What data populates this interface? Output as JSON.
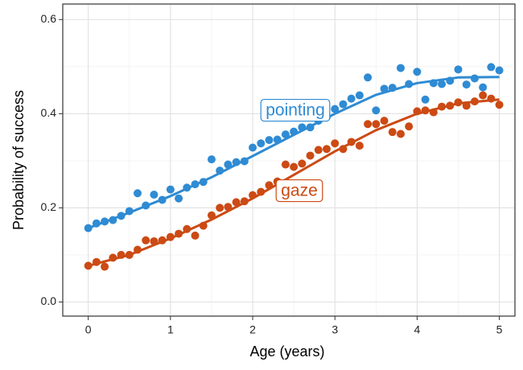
{
  "chart_data": {
    "type": "scatter",
    "xlabel": "Age (years)",
    "ylabel": "Probability of success",
    "xlim": [
      -0.31,
      5.19
    ],
    "ylim": [
      -0.03,
      0.633
    ],
    "xticks": [
      0,
      1,
      2,
      3,
      4,
      5
    ],
    "yticks": [
      {
        "value": 0,
        "label": "0.0"
      },
      {
        "value": 0.2,
        "label": "0.2"
      },
      {
        "value": 0.4,
        "label": "0.4"
      },
      {
        "value": 0.6,
        "label": "0.6"
      }
    ],
    "grid": true,
    "x": [
      0,
      0.1,
      0.2,
      0.3,
      0.4,
      0.5,
      0.6,
      0.7,
      0.8,
      0.9,
      1,
      1.1,
      1.2,
      1.3,
      1.4,
      1.5,
      1.6,
      1.7,
      1.8,
      1.9,
      2,
      2.1,
      2.2,
      2.3,
      2.4,
      2.5,
      2.6,
      2.7,
      2.8,
      2.9,
      3,
      3.1,
      3.2,
      3.3,
      3.4,
      3.5,
      3.6,
      3.7,
      3.8,
      3.9,
      4,
      4.1,
      4.2,
      4.3,
      4.4,
      4.5,
      4.6,
      4.7,
      4.8,
      4.9,
      5
    ],
    "fit_x": [
      0,
      0.5,
      1,
      1.5,
      2,
      2.5,
      3,
      3.5,
      4,
      4.5,
      5
    ],
    "series": [
      {
        "name": "pointing",
        "color": "#2f8bd3",
        "values": [
          0.157,
          0.167,
          0.171,
          0.174,
          0.183,
          0.193,
          0.231,
          0.205,
          0.228,
          0.217,
          0.239,
          0.22,
          0.243,
          0.25,
          0.255,
          0.303,
          0.279,
          0.292,
          0.297,
          0.299,
          0.328,
          0.337,
          0.344,
          0.345,
          0.356,
          0.362,
          0.371,
          0.371,
          0.385,
          0.393,
          0.41,
          0.42,
          0.432,
          0.439,
          0.477,
          0.407,
          0.453,
          0.455,
          0.497,
          0.463,
          0.489,
          0.43,
          0.465,
          0.463,
          0.47,
          0.494,
          0.462,
          0.475,
          0.456,
          0.499,
          0.492
        ],
        "fit_values": [
          0.157,
          0.19,
          0.225,
          0.265,
          0.31,
          0.355,
          0.4,
          0.44,
          0.465,
          0.477,
          0.478
        ]
      },
      {
        "name": "gaze",
        "color": "#cc4a14",
        "values": [
          0.077,
          0.085,
          0.075,
          0.094,
          0.1,
          0.1,
          0.111,
          0.131,
          0.129,
          0.131,
          0.138,
          0.145,
          0.155,
          0.141,
          0.162,
          0.184,
          0.2,
          0.202,
          0.212,
          0.214,
          0.227,
          0.234,
          0.248,
          0.256,
          0.292,
          0.287,
          0.294,
          0.311,
          0.323,
          0.325,
          0.337,
          0.325,
          0.34,
          0.332,
          0.378,
          0.378,
          0.385,
          0.361,
          0.357,
          0.373,
          0.405,
          0.407,
          0.403,
          0.415,
          0.417,
          0.424,
          0.417,
          0.426,
          0.439,
          0.432,
          0.419
        ],
        "fit_values": [
          0.077,
          0.1,
          0.135,
          0.175,
          0.22,
          0.27,
          0.32,
          0.365,
          0.4,
          0.422,
          0.43
        ]
      }
    ]
  }
}
